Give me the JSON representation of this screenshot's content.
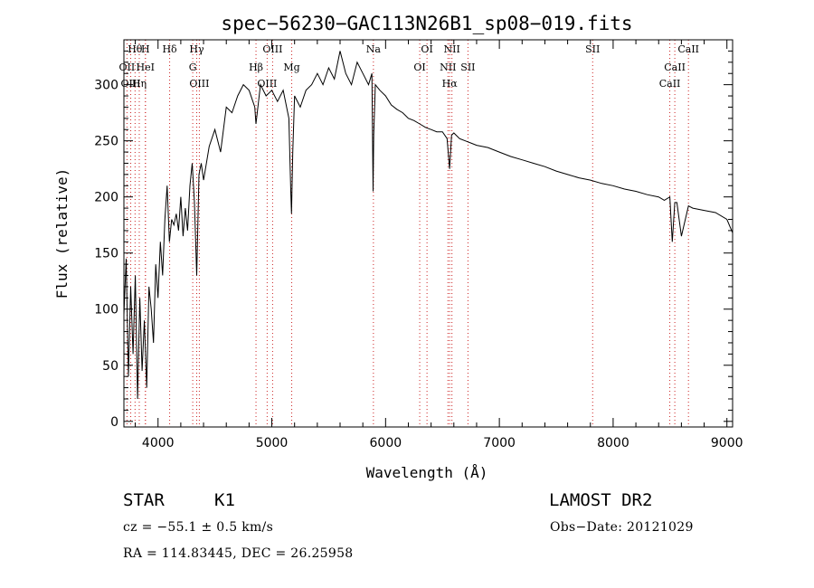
{
  "chart_data": {
    "type": "line",
    "title": "spec−56230−GAC113N26B1_sp08−019.fits",
    "xlabel": "Wavelength (Å)",
    "ylabel": "Flux (relative)",
    "xlim": [
      3700,
      9050
    ],
    "ylim": [
      -5,
      340
    ],
    "x_ticks": [
      4000,
      5000,
      6000,
      7000,
      8000,
      9000
    ],
    "y_ticks": [
      0,
      50,
      100,
      150,
      200,
      250,
      300
    ],
    "grid": false,
    "series": [
      {
        "x": [
          3700,
          3720,
          3740,
          3760,
          3780,
          3800,
          3820,
          3840,
          3860,
          3880,
          3900,
          3920,
          3940,
          3960,
          3980,
          4000,
          4020,
          4040,
          4060,
          4080,
          4100,
          4120,
          4140,
          4160,
          4180,
          4200,
          4220,
          4240,
          4260,
          4280,
          4300,
          4320,
          4340,
          4360,
          4380,
          4400,
          4450,
          4500,
          4550,
          4600,
          4650,
          4700,
          4750,
          4800,
          4850,
          4861,
          4900,
          4950,
          5000,
          5050,
          5100,
          5150,
          5167,
          5173,
          5184,
          5200,
          5250,
          5300,
          5350,
          5400,
          5450,
          5500,
          5550,
          5600,
          5650,
          5700,
          5750,
          5800,
          5850,
          5880,
          5890,
          5896,
          5910,
          5950,
          6000,
          6050,
          6100,
          6150,
          6200,
          6250,
          6300,
          6350,
          6400,
          6450,
          6500,
          6540,
          6563,
          6580,
          6600,
          6650,
          6700,
          6750,
          6800,
          6900,
          7000,
          7100,
          7200,
          7300,
          7400,
          7500,
          7600,
          7700,
          7800,
          7900,
          8000,
          8100,
          8200,
          8300,
          8400,
          8450,
          8498,
          8520,
          8542,
          8560,
          8600,
          8662,
          8700,
          8800,
          8900,
          9000,
          9050
        ],
        "y": [
          95,
          145,
          40,
          120,
          60,
          130,
          20,
          110,
          45,
          90,
          30,
          120,
          100,
          70,
          140,
          110,
          160,
          130,
          180,
          210,
          160,
          180,
          175,
          185,
          170,
          200,
          165,
          190,
          170,
          210,
          230,
          195,
          130,
          220,
          230,
          215,
          245,
          260,
          240,
          280,
          275,
          290,
          300,
          295,
          280,
          265,
          300,
          290,
          295,
          285,
          295,
          270,
          205,
          185,
          240,
          290,
          280,
          295,
          300,
          310,
          300,
          315,
          305,
          330,
          310,
          300,
          320,
          310,
          300,
          310,
          205,
          255,
          300,
          295,
          290,
          282,
          278,
          275,
          270,
          268,
          265,
          262,
          260,
          258,
          258,
          252,
          225,
          255,
          257,
          252,
          250,
          248,
          246,
          244,
          240,
          236,
          233,
          230,
          227,
          223,
          220,
          217,
          215,
          212,
          210,
          207,
          205,
          202,
          200,
          197,
          200,
          160,
          195,
          195,
          165,
          192,
          190,
          188,
          186,
          180,
          168
        ]
      }
    ],
    "line_markers": [
      {
        "label": "Hθ",
        "wavelength": 3798
      },
      {
        "label": "OII",
        "wavelength": 3727
      },
      {
        "label": "OIII",
        "wavelength": 3760
      },
      {
        "label": "H",
        "wavelength": 3889
      },
      {
        "label": "HeI",
        "wavelength": 3889
      },
      {
        "label": "Hη",
        "wavelength": 3835
      },
      {
        "label": "Hδ",
        "wavelength": 4102
      },
      {
        "label": "Hγ",
        "wavelength": 4340
      },
      {
        "label": "G",
        "wavelength": 4305
      },
      {
        "label": "OIII",
        "wavelength": 4363
      },
      {
        "label": "OIII",
        "wavelength": 5007
      },
      {
        "label": "Hβ",
        "wavelength": 4861
      },
      {
        "label": "OIII",
        "wavelength": 4959
      },
      {
        "label": "Mg",
        "wavelength": 5175
      },
      {
        "label": "Na",
        "wavelength": 5893
      },
      {
        "label": "NII",
        "wavelength": 6583
      },
      {
        "label": "OI",
        "wavelength": 6364
      },
      {
        "label": "NII",
        "wavelength": 6548
      },
      {
        "label": "OI",
        "wavelength": 6300
      },
      {
        "label": "Hα",
        "wavelength": 6563
      },
      {
        "label": "SII",
        "wavelength": 6724
      },
      {
        "label": "SII",
        "wavelength": 7820
      },
      {
        "label": "CaII",
        "wavelength": 8662
      },
      {
        "label": "CaII",
        "wavelength": 8542
      },
      {
        "label": "CaII",
        "wavelength": 8498
      }
    ],
    "marker_color": "#cc2222"
  },
  "info": {
    "object_class": "STAR",
    "subclass": "K1",
    "survey": "LAMOST DR2",
    "redshift": "cz = −55.1 ± 0.5 km/s",
    "obs_date": "Obs−Date: 20121029",
    "coords": "RA = 114.83445, DEC =  26.25958"
  }
}
